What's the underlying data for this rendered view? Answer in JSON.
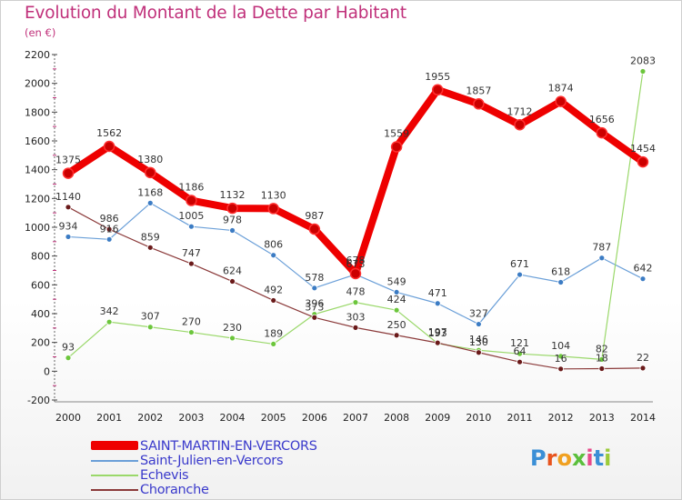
{
  "title": "Evolution du Montant de la Dette par Habitant",
  "unit": "(en €)",
  "logo": {
    "text": "Proxiti",
    "colors": [
      "#3b8fd6",
      "#e8541e",
      "#f0a020",
      "#5bbf3c",
      "#e84a8a",
      "#3b8fd6",
      "#9ccb3a"
    ]
  },
  "chart_data": {
    "type": "line",
    "x": [
      "2000",
      "2001",
      "2002",
      "2003",
      "2004",
      "2005",
      "2006",
      "2007",
      "2008",
      "2009",
      "2010",
      "2011",
      "2012",
      "2013",
      "2014"
    ],
    "ylim": [
      -200,
      2200
    ],
    "yticks": [
      -200,
      0,
      200,
      400,
      600,
      800,
      1000,
      1200,
      1400,
      1600,
      1800,
      2000,
      2200
    ],
    "grid": false,
    "legend_position": "bottom-left",
    "series": [
      {
        "name": "SAINT-MARTIN-EN-VERCORS",
        "color": "#ee0000",
        "marker": "#cc0000",
        "values": [
          1375,
          1562,
          1380,
          1186,
          1132,
          1130,
          987,
          678,
          1559,
          1955,
          1857,
          1712,
          1874,
          1656,
          1454
        ],
        "labels": [
          "1375",
          "1562",
          "1380",
          "1186",
          "1132",
          "1130",
          "987",
          "678",
          "1559",
          "1955",
          "1857",
          "1712",
          "1874",
          "1656",
          "1454"
        ]
      },
      {
        "name": "Saint-Julien-en-Vercors",
        "color": "#6a9fd8",
        "marker": "#3c7cc4",
        "values": [
          934,
          916,
          1168,
          1005,
          978,
          806,
          578,
          673,
          549,
          471,
          327,
          671,
          618,
          787,
          642
        ],
        "labels": [
          "934",
          "916",
          "1168",
          "1005",
          "978",
          "806",
          "578",
          "673",
          "549",
          "471",
          "327",
          "671",
          "618",
          "787",
          "642"
        ]
      },
      {
        "name": "Echevis",
        "color": "#9ad86a",
        "marker": "#6cc63c",
        "values": [
          93,
          342,
          307,
          270,
          230,
          189,
          396,
          478,
          424,
          193,
          146,
          121,
          104,
          82,
          2083
        ],
        "labels": [
          "93",
          "342",
          "307",
          "270",
          "230",
          "189",
          "396",
          "478",
          "424",
          "193",
          "146",
          "121",
          "104",
          "82",
          "2083"
        ]
      },
      {
        "name": "Choranche",
        "color": "#8b3a3a",
        "marker": "#6a1a1a",
        "values": [
          1140,
          986,
          859,
          747,
          624,
          492,
          373,
          303,
          250,
          197,
          130,
          64,
          16,
          18,
          22
        ],
        "labels": [
          "1140",
          "986",
          "859",
          "747",
          "624",
          "492",
          "373",
          "303",
          "250",
          "197",
          "130",
          "64",
          "16",
          "18",
          "22"
        ]
      }
    ]
  }
}
